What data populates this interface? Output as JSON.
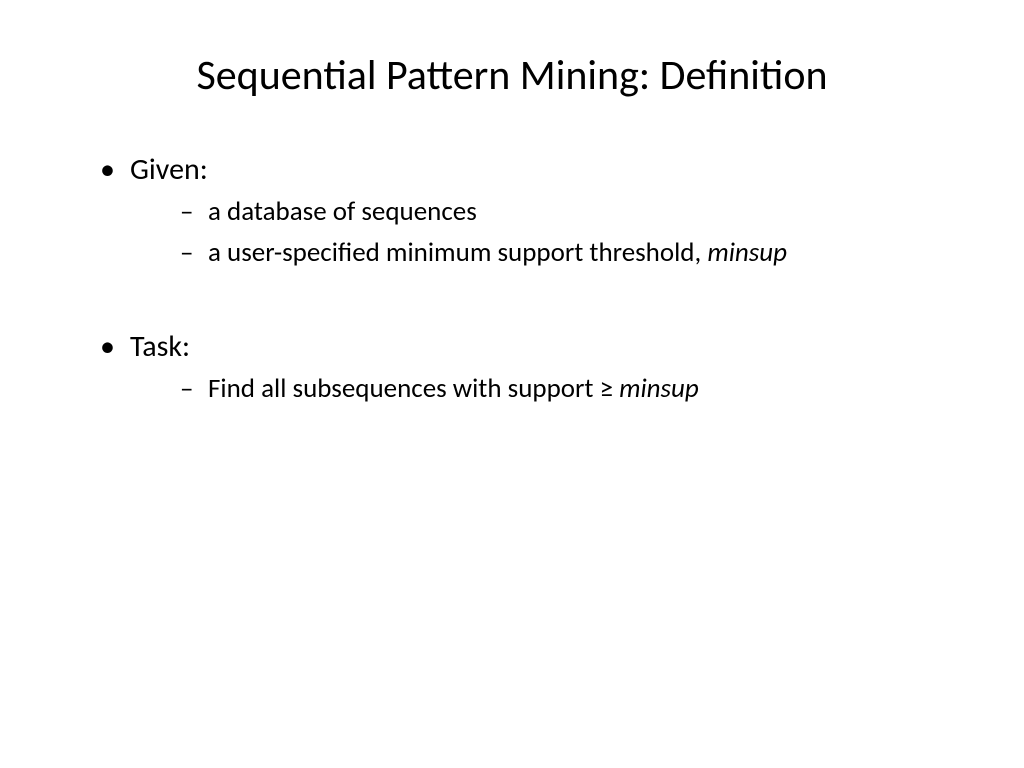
{
  "slide": {
    "title": "Sequential Pattern Mining: Definition",
    "title_fontsize": 42,
    "title_color": "#000000",
    "background_color": "#ffffff",
    "body_fontsize_level1": 30,
    "body_fontsize_level2": 27,
    "text_color": "#000000",
    "sections": [
      {
        "heading": "Given:",
        "items": [
          {
            "text": "a database of sequences",
            "italic_part": null
          },
          {
            "text": "a user-specified minimum support threshold, ",
            "italic_part": "minsup"
          }
        ]
      },
      {
        "heading": "Task:",
        "items": [
          {
            "text": "Find all subsequences with support ≥ ",
            "italic_part": "minsup"
          }
        ]
      }
    ]
  }
}
